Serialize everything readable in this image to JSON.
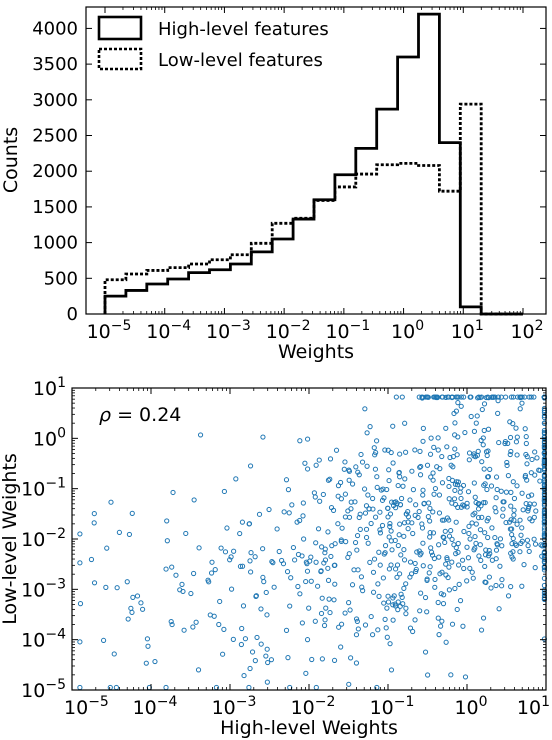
{
  "chart_data": [
    {
      "type": "histogram",
      "xlabel": "Weights",
      "ylabel": "Counts",
      "xscale": "log",
      "xlim": [
        -5,
        2
      ],
      "ylim": [
        0,
        4300
      ],
      "x_ticks": [
        {
          "base": "10",
          "exp": "−5"
        },
        {
          "base": "10",
          "exp": "−4"
        },
        {
          "base": "10",
          "exp": "−3"
        },
        {
          "base": "10",
          "exp": "−2"
        },
        {
          "base": "10",
          "exp": "−1"
        },
        {
          "base": "10",
          "exp": "0"
        },
        {
          "base": "10",
          "exp": "1"
        },
        {
          "base": "10",
          "exp": "2"
        }
      ],
      "y_ticks": [
        "0",
        "500",
        "1000",
        "1500",
        "2000",
        "2500",
        "3000",
        "3500",
        "4000"
      ],
      "bin_edges_log10": [
        -5.0,
        -4.65,
        -4.3,
        -3.95,
        -3.6,
        -3.25,
        -2.9,
        -2.55,
        -2.2,
        -1.85,
        -1.5,
        -1.15,
        -0.8,
        -0.45,
        -0.1,
        0.25,
        0.6,
        0.95,
        1.3,
        1.65,
        2.0
      ],
      "series": [
        {
          "name": "High-level features",
          "style": "solid",
          "values": [
            250,
            330,
            420,
            490,
            580,
            620,
            700,
            870,
            1050,
            1330,
            1600,
            1950,
            2320,
            2870,
            3600,
            4200,
            2400,
            100,
            0,
            0
          ]
        },
        {
          "name": "Low-level features",
          "style": "dotted",
          "values": [
            480,
            560,
            610,
            650,
            700,
            760,
            830,
            990,
            1270,
            1340,
            1590,
            1780,
            1960,
            2090,
            2110,
            2080,
            1720,
            2940,
            0,
            0
          ]
        }
      ],
      "legend_position": "top-left",
      "color": "#000000"
    },
    {
      "type": "scatter",
      "xlabel": "High-level Weights",
      "ylabel": "Low-level Weights",
      "xscale": "log",
      "yscale": "log",
      "xlim": [
        -5,
        1
      ],
      "ylim": [
        -5,
        1
      ],
      "annotation": {
        "symbol": "ρ",
        "text": " = 0.24"
      },
      "x_ticks": [
        {
          "base": "10",
          "exp": "−5"
        },
        {
          "base": "10",
          "exp": "−4"
        },
        {
          "base": "10",
          "exp": "−3"
        },
        {
          "base": "10",
          "exp": "−2"
        },
        {
          "base": "10",
          "exp": "−1"
        },
        {
          "base": "10",
          "exp": "0"
        },
        {
          "base": "10",
          "exp": "1"
        }
      ],
      "y_ticks": [
        {
          "base": "10",
          "exp": "−5"
        },
        {
          "base": "10",
          "exp": "−4"
        },
        {
          "base": "10",
          "exp": "−3"
        },
        {
          "base": "10",
          "exp": "−2"
        },
        {
          "base": "10",
          "exp": "−1"
        },
        {
          "base": "10",
          "exp": "0"
        },
        {
          "base": "10",
          "exp": "1"
        }
      ],
      "marker_color": "#1f77b4",
      "point_count": 950,
      "correlation": 0.24
    }
  ]
}
